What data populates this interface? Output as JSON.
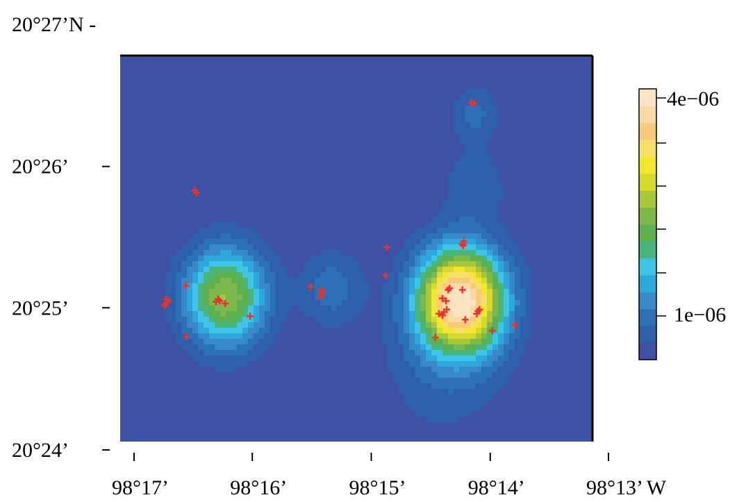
{
  "axes": {
    "y_labels": [
      {
        "value": 20.45,
        "text": "20°27’N -"
      },
      {
        "value": 20.4333,
        "text": "20°26’"
      },
      {
        "value": 20.4167,
        "text": "20°25’"
      },
      {
        "value": 20.4,
        "text": "20°24’"
      }
    ],
    "x_labels": [
      {
        "value": -98.2833,
        "text": "98°17’"
      },
      {
        "value": -98.2667,
        "text": "98°16’"
      },
      {
        "value": -98.25,
        "text": "98°15’"
      },
      {
        "value": -98.2333,
        "text": "98°14’"
      },
      {
        "value": -98.2167,
        "text": "98°13’ W"
      }
    ]
  },
  "density_field": {
    "palette": [
      "#3f51a3",
      "#2e5fac",
      "#2c6fb9",
      "#3889c9",
      "#2ea7dc",
      "#3ec4e6",
      "#49b57a",
      "#5cb04d",
      "#7cb84b",
      "#a8c83c",
      "#d7d92c",
      "#f4e62c",
      "#f6e06a",
      "#f8cb7c",
      "#f9d9a6",
      "#fbe4c2"
    ],
    "max": 4.3e-06,
    "kernels": [
      {
        "lon": -98.2375,
        "lat": 20.4175,
        "sigma": 0.004,
        "weight": 4.3e-06
      },
      {
        "lon": -98.2705,
        "lat": 20.418,
        "sigma": 0.0038,
        "weight": 2.2e-06
      },
      {
        "lon": -98.2555,
        "lat": 20.419,
        "sigma": 0.003,
        "weight": 5e-07
      },
      {
        "lon": -98.2355,
        "lat": 20.4395,
        "sigma": 0.0022,
        "weight": 4.5e-07
      },
      {
        "lon": -98.2355,
        "lat": 20.431,
        "sigma": 0.003,
        "weight": 3.5e-07
      },
      {
        "lon": -98.24,
        "lat": 20.41,
        "sigma": 0.006,
        "weight": 3e-07
      }
    ]
  },
  "legend": {
    "max_label": "4e−06",
    "min_label": "1e−06",
    "max_value": 4e-06,
    "min_value": 1e-06
  },
  "points": [
    [
      -98.236,
      20.4408
    ],
    [
      -98.2355,
      20.4407
    ],
    [
      -98.236,
      20.4408
    ],
    [
      -98.2748,
      20.4305
    ],
    [
      -98.2745,
      20.4302
    ],
    [
      -98.2478,
      20.4238
    ],
    [
      -98.237,
      20.4245
    ],
    [
      -98.2372,
      20.4242
    ],
    [
      -98.2371,
      20.424
    ],
    [
      -98.248,
      20.4205
    ],
    [
      -98.276,
      20.4193
    ],
    [
      -98.2788,
      20.4177
    ],
    [
      -98.2785,
      20.4175
    ],
    [
      -98.279,
      20.417
    ],
    [
      -98.2788,
      20.4172
    ],
    [
      -98.2713,
      20.4175
    ],
    [
      -98.2718,
      20.4174
    ],
    [
      -98.2715,
      20.4177
    ],
    [
      -98.2705,
      20.4172
    ],
    [
      -98.2585,
      20.4192
    ],
    [
      -98.257,
      20.4188
    ],
    [
      -98.2568,
      20.4185
    ],
    [
      -98.2571,
      20.418
    ],
    [
      -98.267,
      20.4157
    ],
    [
      -98.276,
      20.4133
    ],
    [
      -98.2392,
      20.4188
    ],
    [
      -98.239,
      20.419
    ],
    [
      -98.2372,
      20.4188
    ],
    [
      -98.24,
      20.4178
    ],
    [
      -98.2395,
      20.4175
    ],
    [
      -98.2394,
      20.4165
    ],
    [
      -98.2398,
      20.4162
    ],
    [
      -98.24,
      20.4158
    ],
    [
      -98.2405,
      20.416
    ],
    [
      -98.2352,
      20.416
    ],
    [
      -98.235,
      20.4163
    ],
    [
      -98.2348,
      20.4165
    ],
    [
      -98.2368,
      20.4153
    ],
    [
      -98.233,
      20.414
    ],
    [
      -98.2298,
      20.4147
    ],
    [
      -98.241,
      20.4132
    ]
  ]
}
